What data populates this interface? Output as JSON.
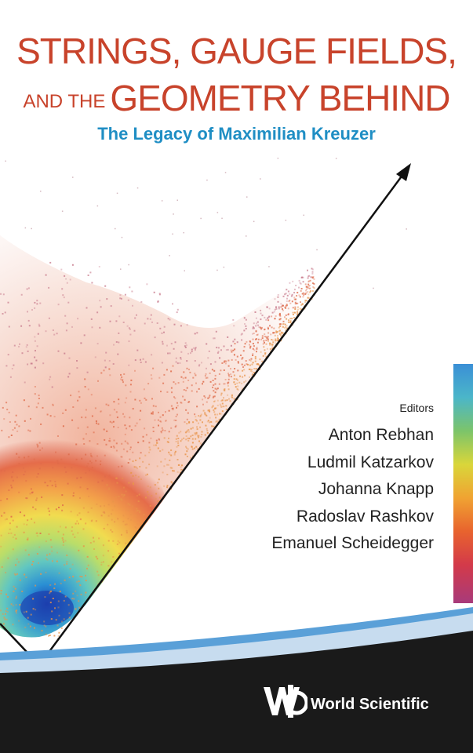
{
  "cover": {
    "title_line1": "STRINGS, GAUGE FIELDS,",
    "title_line2_small": "AND THE",
    "title_line2_large": "GEOMETRY BEHIND",
    "subtitle": "The Legacy of Maximilian Kreuzer"
  },
  "editors": {
    "label": "Editors",
    "names": [
      "Anton Rebhan",
      "Ludmil Katzarkov",
      "Johanna Knapp",
      "Radoslav Rashkov",
      "Emanuel Scheidegger"
    ]
  },
  "publisher": {
    "name": "World Scientific",
    "logo_icon": "ws-logo-icon"
  },
  "colors": {
    "title": "#c8432b",
    "subtitle": "#1f8ec4",
    "footer": "#1a1a1a",
    "swoosh": "#5aa0d8"
  }
}
